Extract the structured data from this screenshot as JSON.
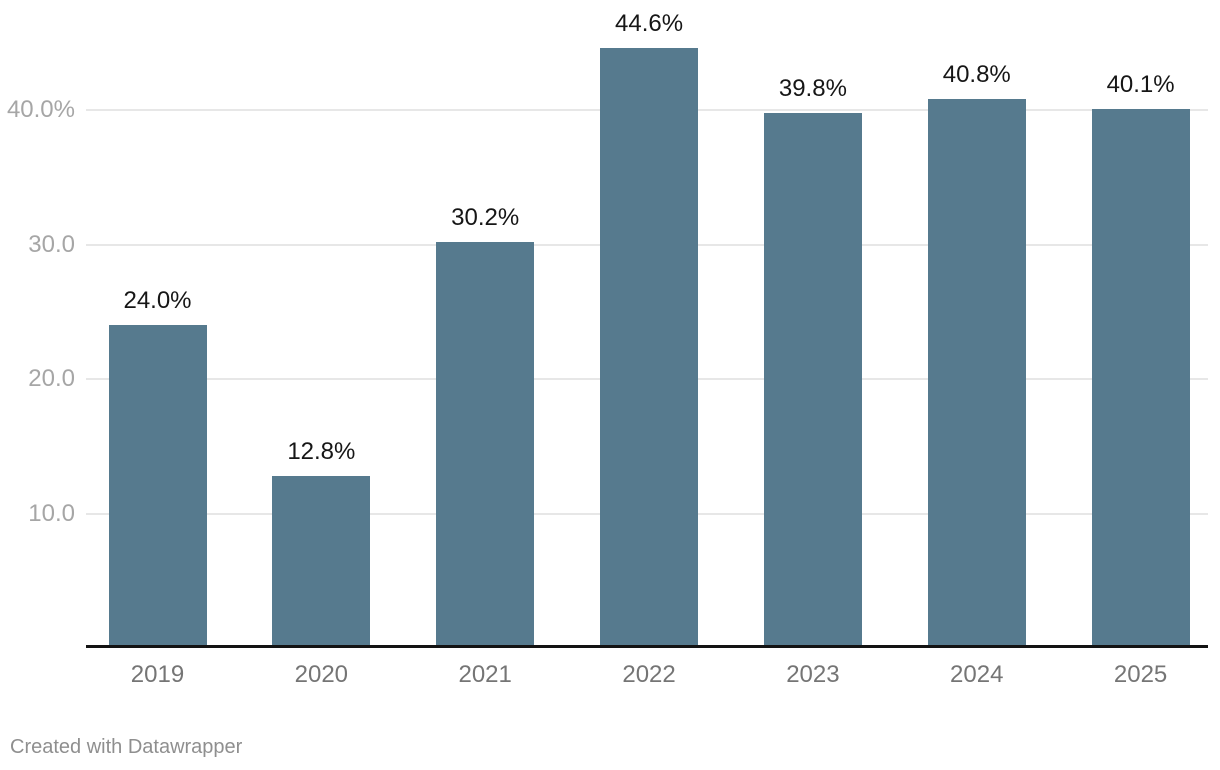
{
  "chart_data": {
    "type": "bar",
    "categories": [
      "2019",
      "2020",
      "2021",
      "2022",
      "2023",
      "2024",
      "2025"
    ],
    "values": [
      24.0,
      12.8,
      30.2,
      44.6,
      39.8,
      40.8,
      40.1
    ],
    "value_labels": [
      "24.0%",
      "12.8%",
      "30.2%",
      "44.6%",
      "39.8%",
      "40.8%",
      "40.1%"
    ],
    "yticks": [
      {
        "value": 10,
        "label": "10.0"
      },
      {
        "value": 20,
        "label": "20.0"
      },
      {
        "value": 30,
        "label": "30.0"
      },
      {
        "value": 40,
        "label": "40.0%"
      }
    ],
    "ylim": [
      0,
      48.2
    ],
    "grid": "horizontal",
    "legend": "none",
    "bar_color": "#567a8e"
  },
  "footer": {
    "attribution": "Created with Datawrapper"
  },
  "colors": {
    "bar": "#567a8e",
    "axis_line": "#131313",
    "gridline": "#e7e7e7",
    "ytick_text": "#a6a6a6",
    "xtick_text": "#757575",
    "value_text": "#161616",
    "background": "#ffffff"
  }
}
